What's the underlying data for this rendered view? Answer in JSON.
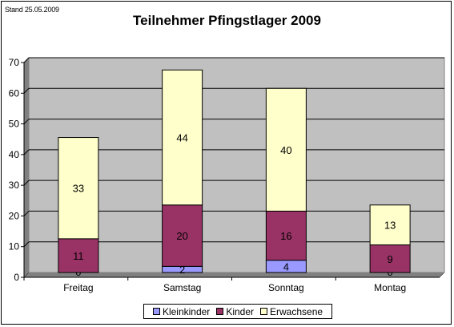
{
  "stamp": "Stand 25.05.2009",
  "colors": {
    "plot_bg": "#C0C0C0",
    "grid": "#000000",
    "Kleinkinder": "#9999FF",
    "Kinder": "#993366",
    "Erwachsene": "#FFFFCC"
  },
  "chart_data": {
    "type": "bar",
    "stacked": true,
    "title": "Teilnehmer Pfingstlager 2009",
    "categories": [
      "Freitag",
      "Samstag",
      "Sonntag",
      "Montag"
    ],
    "series": [
      {
        "name": "Kleinkinder",
        "values": [
          0,
          2,
          4,
          0
        ],
        "labels": [
          "0",
          "2",
          "4",
          "0"
        ]
      },
      {
        "name": "Kinder",
        "values": [
          11,
          20,
          16,
          9
        ],
        "labels": [
          "11",
          "20",
          "16",
          "9"
        ]
      },
      {
        "name": "Erwachsene",
        "values": [
          33,
          44,
          40,
          13
        ],
        "labels": [
          "33",
          "44",
          "40",
          "13"
        ]
      }
    ],
    "ylim": [
      0,
      70
    ],
    "yticks": [
      "0",
      "10",
      "20",
      "30",
      "40",
      "50",
      "60",
      "70"
    ],
    "grid": true,
    "legend_position": "bottom"
  }
}
